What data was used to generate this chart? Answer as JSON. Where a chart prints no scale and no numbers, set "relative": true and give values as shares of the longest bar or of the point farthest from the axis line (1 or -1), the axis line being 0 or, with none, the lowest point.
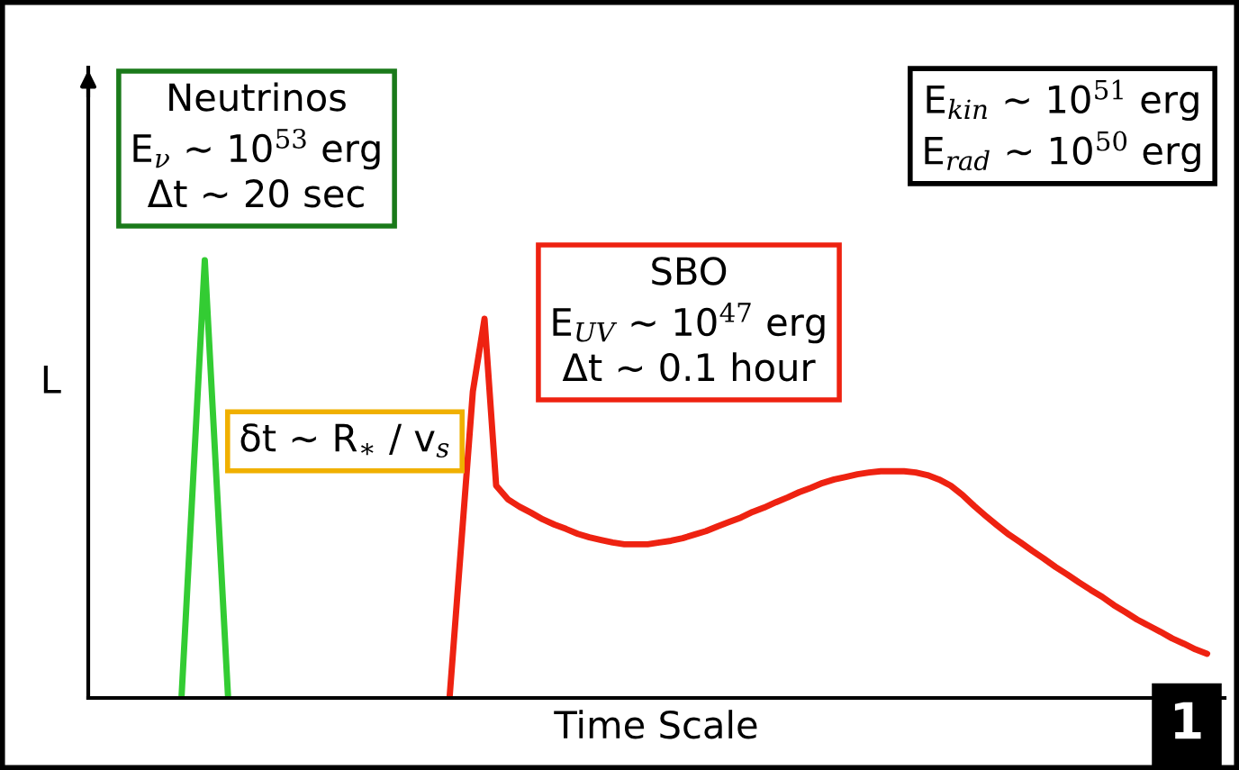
{
  "chart_data": {
    "type": "line",
    "relative": true,
    "xlabel": "Time Scale",
    "ylabel": "L",
    "categories": [
      null,
      null,
      null,
      null,
      null,
      null,
      null,
      null,
      null,
      null,
      null,
      null,
      null,
      null,
      null,
      null,
      null,
      null,
      null,
      null,
      null,
      null,
      null,
      null,
      null,
      null,
      null,
      null,
      null,
      null,
      null,
      null,
      null,
      null,
      null,
      null,
      null,
      null,
      null,
      null,
      null,
      null,
      null,
      null,
      null,
      null,
      null,
      null,
      null,
      null,
      null,
      null,
      null,
      null,
      null,
      null,
      null,
      null,
      null,
      null,
      null,
      null,
      null,
      null,
      null,
      null,
      null,
      null,
      null,
      null,
      null,
      null,
      null,
      null,
      null,
      null,
      null,
      null,
      null,
      null,
      null,
      null,
      null,
      null,
      null,
      null,
      null,
      null,
      null,
      null,
      null,
      null,
      null,
      null,
      null,
      null,
      null,
      null
    ],
    "series": [
      {
        "color": "#33cc33",
        "values": [
          null,
          null,
          null,
          null,
          null,
          null,
          null,
          null,
          0,
          0.5,
          1,
          0.5,
          0,
          null,
          null,
          null,
          null,
          null,
          null,
          null,
          null,
          null,
          null,
          null,
          null,
          null,
          null,
          null,
          null,
          null,
          null,
          null,
          null,
          null,
          null,
          null,
          null,
          null,
          null,
          null,
          null,
          null,
          null,
          null,
          null,
          null,
          null,
          null,
          null,
          null,
          null,
          null,
          null,
          null,
          null,
          null,
          null,
          null,
          null,
          null,
          null,
          null,
          null,
          null,
          null,
          null,
          null,
          null,
          null,
          null,
          null,
          null,
          null,
          null,
          null,
          null,
          null,
          null,
          null,
          null,
          null,
          null,
          null,
          null,
          null,
          null,
          null,
          null,
          null,
          null,
          null,
          null,
          null,
          null,
          null,
          null,
          null,
          null
        ]
      },
      {
        "color": "#ee2211",
        "values": [
          null,
          null,
          null,
          null,
          null,
          null,
          null,
          null,
          null,
          null,
          null,
          null,
          null,
          null,
          null,
          null,
          null,
          null,
          null,
          null,
          null,
          null,
          null,
          null,
          null,
          null,
          null,
          null,
          null,
          null,
          null,
          0,
          0.35,
          0.7,
          0.866,
          0.485,
          0.454,
          0.437,
          0.423,
          0.408,
          0.396,
          0.386,
          0.375,
          0.367,
          0.361,
          0.355,
          0.351,
          0.351,
          0.351,
          0.355,
          0.359,
          0.365,
          0.373,
          0.381,
          0.392,
          0.402,
          0.412,
          0.425,
          0.435,
          0.447,
          0.458,
          0.47,
          0.48,
          0.491,
          0.499,
          0.505,
          0.511,
          0.515,
          0.518,
          0.518,
          0.518,
          0.515,
          0.509,
          0.499,
          0.485,
          0.464,
          0.439,
          0.416,
          0.394,
          0.373,
          0.355,
          0.336,
          0.318,
          0.299,
          0.282,
          0.264,
          0.247,
          0.231,
          0.212,
          0.196,
          0.179,
          0.165,
          0.151,
          0.136,
          0.124,
          0.111,
          0.101,
          null
        ]
      }
    ],
    "annotations": [
      "Neutrinos\nE$_{ν}$ ∼ 10$^{53}$ erg\nΔt ∼ 20 sec",
      "δt ∼ R$_{∗}$ / v$_{s}$",
      "SBO\nE$_{UV}$ ∼ 10$^{47}$ erg\nΔt ∼ 0.1 hour",
      "E$_{kin}$ ∼ 10$^{51}$ erg\nE$_{rad}$ ∼ 10$^{50}$ erg",
      "1"
    ]
  }
}
